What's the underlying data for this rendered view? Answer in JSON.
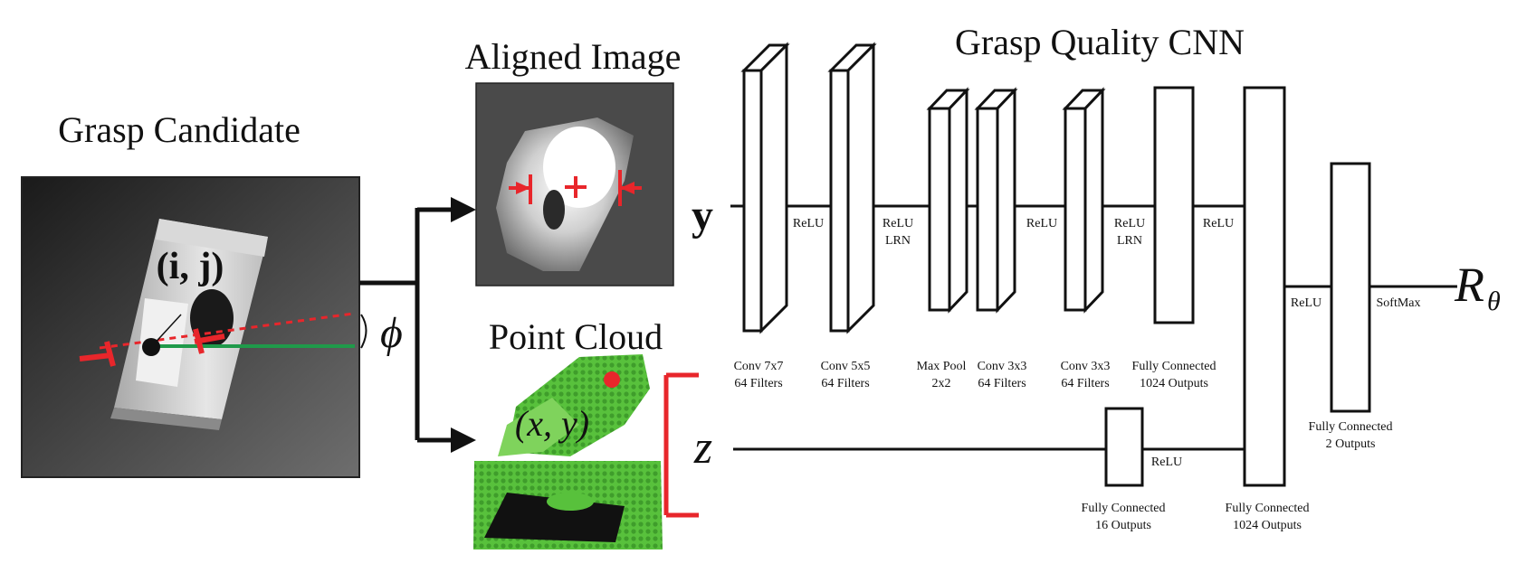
{
  "titles": {
    "grasp_candidate": "Grasp Candidate",
    "aligned_image": "Aligned Image",
    "point_cloud": "Point Cloud",
    "network": "Grasp Quality CNN"
  },
  "symbols": {
    "ij": "(i, j)",
    "phi": "ϕ",
    "xy": "(x, y)",
    "y": "y",
    "z": "z",
    "output": "R",
    "output_sub": "θ"
  },
  "layers": {
    "conv1": [
      "Conv 7x7",
      "64 Filters"
    ],
    "conv2": [
      "Conv 5x5",
      "64 Filters"
    ],
    "pool": [
      "Max Pool",
      "2x2"
    ],
    "conv3": [
      "Conv 3x3",
      "64 Filters"
    ],
    "conv4": [
      "Conv 3x3",
      "64 Filters"
    ],
    "fc1": [
      "Fully Connected",
      "1024 Outputs"
    ],
    "fc_z": [
      "Fully Connected",
      "16 Outputs"
    ],
    "fc_merge": [
      "Fully Connected",
      "1024 Outputs"
    ],
    "fc_out": [
      "Fully Connected",
      "2 Outputs"
    ]
  },
  "activations": {
    "a1": "ReLU",
    "a2": [
      "ReLU",
      "LRN"
    ],
    "a3": "ReLU",
    "a4": [
      "ReLU",
      "LRN"
    ],
    "a5": "ReLU",
    "a_z": "ReLU",
    "a_merge": "ReLU",
    "a_out": "SoftMax"
  },
  "colors": {
    "grasp_red": "#e8262b",
    "axis_green": "#1f9a4a",
    "cloud_green": "#58c13c",
    "black": "#111111"
  }
}
